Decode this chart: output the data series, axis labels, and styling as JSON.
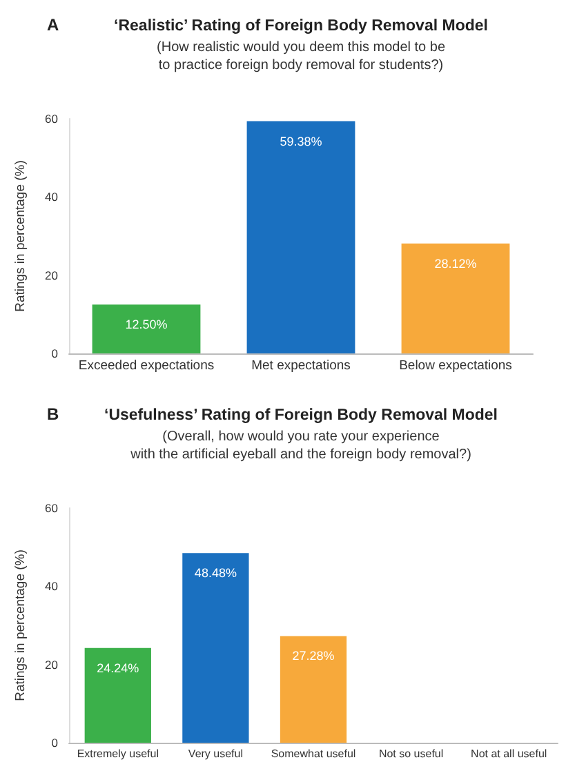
{
  "chart_data": [
    {
      "type": "bar",
      "title": "‘Realistic’ Rating of Foreign Body Removal Model",
      "subtitle": "(How realistic would you deem this model to be\nto practice foreign body removal for students?)",
      "ylabel": "Ratings in percentage (%)",
      "annotations": [
        "A"
      ],
      "categories": [
        "Exceeded expectations",
        "Met expectations",
        "Below expectations"
      ],
      "values": [
        12.5,
        59.38,
        28.12
      ],
      "colors": [
        "#3bb04a",
        "#1a70c0",
        "#f7a93b"
      ],
      "value_labels": [
        "12.50%",
        "59.38%",
        "28.12%"
      ],
      "ylim": [
        0,
        60
      ],
      "yticks": [
        0,
        20,
        40,
        60
      ],
      "grid": false
    },
    {
      "type": "bar",
      "title": "‘Usefulness’ Rating of Foreign Body Removal Model",
      "subtitle": "(Overall, how would you rate your experience\nwith the artificial eyeball and the foreign body removal?)",
      "ylabel": "Ratings in percentage (%)",
      "annotations": [
        "B"
      ],
      "categories": [
        "Extremely useful",
        "Very useful",
        "Somewhat useful",
        "Not so useful",
        "Not at all useful"
      ],
      "values": [
        24.24,
        48.48,
        27.28,
        0,
        0
      ],
      "colors": [
        "#3bb04a",
        "#1a70c0",
        "#f7a93b",
        "#888888",
        "#888888"
      ],
      "value_labels": [
        "24.24%",
        "48.48%",
        "27.28%",
        null,
        null
      ],
      "ylim": [
        0,
        60
      ],
      "yticks": [
        0,
        20,
        40,
        60
      ],
      "grid": false
    }
  ]
}
